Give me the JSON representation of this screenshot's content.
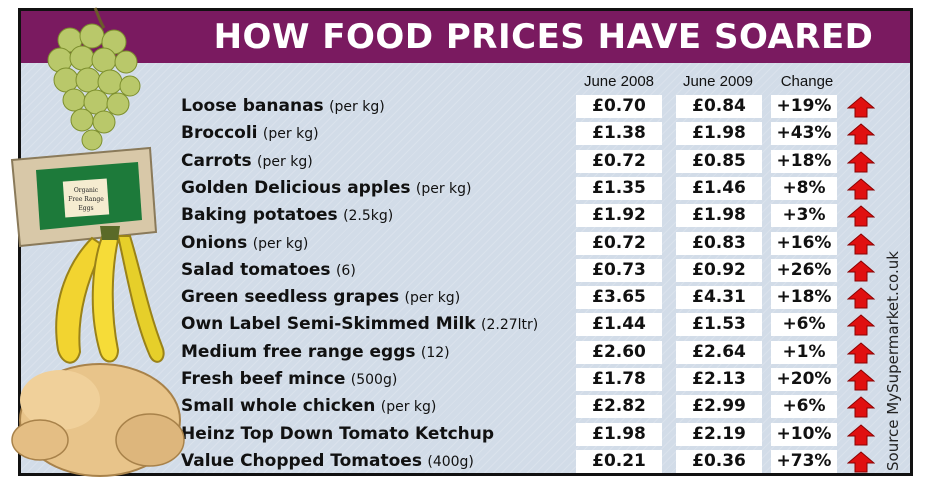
{
  "title": "HOW FOOD PRICES HAVE SOARED",
  "source": "Source MySupermarket.co.uk",
  "egg_carton_text": [
    "Organic",
    "Free Range",
    "Eggs"
  ],
  "colors": {
    "header": "#7a1a60",
    "arrow": "#e01010",
    "panel": "#d2dce8"
  },
  "chart_data": {
    "type": "table",
    "columns": [
      "June 2008",
      "June 2009",
      "Change"
    ],
    "rows": [
      {
        "item": "Loose bananas",
        "unit": "(per kg)",
        "jun2008": "£0.70",
        "jun2009": "£0.84",
        "change": "+19%"
      },
      {
        "item": "Broccoli",
        "unit": "(per kg)",
        "jun2008": "£1.38",
        "jun2009": "£1.98",
        "change": "+43%"
      },
      {
        "item": "Carrots",
        "unit": "(per kg)",
        "jun2008": "£0.72",
        "jun2009": "£0.85",
        "change": "+18%"
      },
      {
        "item": "Golden Delicious apples",
        "unit": "(per kg)",
        "jun2008": "£1.35",
        "jun2009": "£1.46",
        "change": "+8%"
      },
      {
        "item": "Baking potatoes",
        "unit": "(2.5kg)",
        "jun2008": "£1.92",
        "jun2009": "£1.98",
        "change": "+3%"
      },
      {
        "item": "Onions",
        "unit": "(per kg)",
        "jun2008": "£0.72",
        "jun2009": "£0.83",
        "change": "+16%"
      },
      {
        "item": "Salad tomatoes",
        "unit": "(6)",
        "jun2008": "£0.73",
        "jun2009": "£0.92",
        "change": "+26%"
      },
      {
        "item": "Green seedless grapes",
        "unit": "(per kg)",
        "jun2008": "£3.65",
        "jun2009": "£4.31",
        "change": "+18%"
      },
      {
        "item": "Own Label Semi-Skimmed Milk",
        "unit": "(2.27ltr)",
        "jun2008": "£1.44",
        "jun2009": "£1.53",
        "change": "+6%"
      },
      {
        "item": "Medium free range eggs",
        "unit": "(12)",
        "jun2008": "£2.60",
        "jun2009": "£2.64",
        "change": "+1%"
      },
      {
        "item": "Fresh beef mince",
        "unit": "(500g)",
        "jun2008": "£1.78",
        "jun2009": "£2.13",
        "change": "+20%"
      },
      {
        "item": "Small whole chicken",
        "unit": "(per kg)",
        "jun2008": "£2.82",
        "jun2009": "£2.99",
        "change": "+6%"
      },
      {
        "item": "Heinz Top Down Tomato Ketchup",
        "unit": "",
        "jun2008": "£1.98",
        "jun2009": "£2.19",
        "change": "+10%"
      },
      {
        "item": "Value Chopped Tomatoes",
        "unit": "(400g)",
        "jun2008": "£0.21",
        "jun2009": "£0.36",
        "change": "+73%"
      }
    ]
  }
}
